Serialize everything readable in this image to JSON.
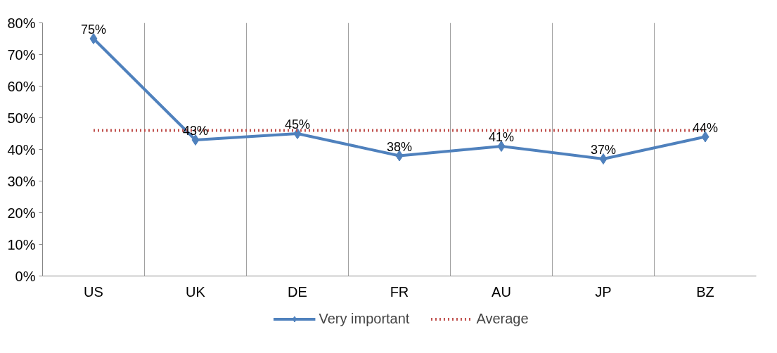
{
  "chart_data": {
    "type": "line",
    "categories": [
      "US",
      "UK",
      "DE",
      "FR",
      "AU",
      "JP",
      "BZ"
    ],
    "series": [
      {
        "name": "Very important",
        "color": "#4f81bd",
        "marker": "diamond",
        "line_style": "solid",
        "values": [
          75,
          43,
          45,
          38,
          41,
          37,
          44
        ],
        "value_labels": [
          "75%",
          "43%",
          "45%",
          "38%",
          "41%",
          "37%",
          "44%"
        ]
      },
      {
        "name": "Average",
        "color": "#c0504d",
        "marker": "none",
        "line_style": "dotted",
        "values": [
          46,
          46,
          46,
          46,
          46,
          46,
          46
        ]
      }
    ],
    "ylim": [
      0,
      80
    ],
    "yticks": [
      {
        "value": 0,
        "label": "0%"
      },
      {
        "value": 10,
        "label": "10%"
      },
      {
        "value": 20,
        "label": "20%"
      },
      {
        "value": 30,
        "label": "30%"
      },
      {
        "value": 40,
        "label": "40%"
      },
      {
        "value": 50,
        "label": "50%"
      },
      {
        "value": 60,
        "label": "60%"
      },
      {
        "value": 70,
        "label": "70%"
      },
      {
        "value": 80,
        "label": "80%"
      }
    ],
    "grid": "x",
    "legend": "bottom"
  }
}
